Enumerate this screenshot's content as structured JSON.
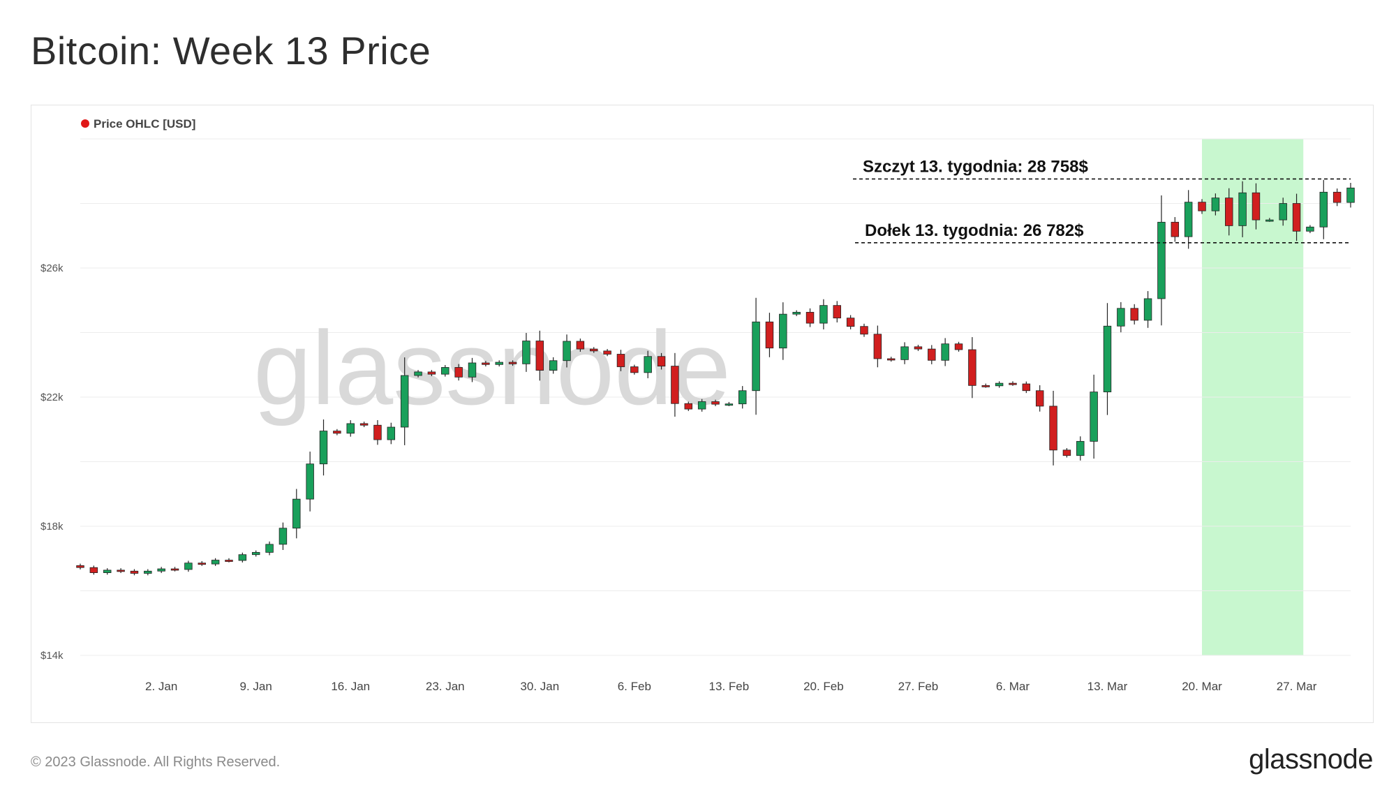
{
  "title": "Bitcoin: Week 13 Price",
  "footer": {
    "copyright": "© 2023 Glassnode. All Rights Reserved.",
    "logo": "glassnode"
  },
  "colors": {
    "up": "#19a05b",
    "down": "#d11f1f",
    "highlight": "#c8f7cf",
    "grid": "#ececec",
    "legend_dot": "#e01818"
  },
  "chart_data": {
    "type": "candlestick",
    "legend": [
      {
        "label": "Price OHLC [USD]",
        "color": "#e01818"
      }
    ],
    "watermark": "glassnode",
    "y_axis": {
      "ticks": [
        14000,
        18000,
        22000,
        26000
      ],
      "tick_labels": [
        "$14k",
        "$18k",
        "$22k",
        "$26k"
      ],
      "range": [
        14000,
        30000
      ]
    },
    "x_axis": {
      "start": "2022-12-27",
      "end": "2023-03-31",
      "ticks": [
        "2023-01-02",
        "2023-01-09",
        "2023-01-16",
        "2023-01-23",
        "2023-01-30",
        "2023-02-06",
        "2023-02-13",
        "2023-02-20",
        "2023-02-27",
        "2023-03-06",
        "2023-03-13",
        "2023-03-20",
        "2023-03-27"
      ],
      "tick_labels": [
        "2. Jan",
        "9. Jan",
        "16. Jan",
        "23. Jan",
        "30. Jan",
        "6. Feb",
        "13. Feb",
        "20. Feb",
        "27. Feb",
        "6. Mar",
        "13. Mar",
        "20. Mar",
        "27. Mar"
      ]
    },
    "highlight": {
      "from": "2023-03-20",
      "to": "2023-03-27"
    },
    "annotations": [
      {
        "label": "Szczyt 13. tygodnia: 28 758$",
        "value": 28758
      },
      {
        "label": "Dołek 13. tygodnia: 26 782$",
        "value": 26782
      }
    ],
    "close_series": [
      [
        "2022-12-27",
        16720
      ],
      [
        "2022-12-28",
        16560
      ],
      [
        "2022-12-29",
        16640
      ],
      [
        "2022-12-30",
        16610
      ],
      [
        "2022-12-31",
        16540
      ],
      [
        "2023-01-01",
        16610
      ],
      [
        "2023-01-02",
        16680
      ],
      [
        "2023-01-03",
        16660
      ],
      [
        "2023-01-04",
        16860
      ],
      [
        "2023-01-05",
        16830
      ],
      [
        "2023-01-06",
        16950
      ],
      [
        "2023-01-07",
        16940
      ],
      [
        "2023-01-08",
        17120
      ],
      [
        "2023-01-09",
        17190
      ],
      [
        "2023-01-10",
        17440
      ],
      [
        "2023-01-11",
        17940
      ],
      [
        "2023-01-12",
        18840
      ],
      [
        "2023-01-13",
        19930
      ],
      [
        "2023-01-14",
        20950
      ],
      [
        "2023-01-15",
        20880
      ],
      [
        "2023-01-16",
        21180
      ],
      [
        "2023-01-17",
        21130
      ],
      [
        "2023-01-18",
        20680
      ],
      [
        "2023-01-19",
        21070
      ],
      [
        "2023-01-20",
        22670
      ],
      [
        "2023-01-21",
        22780
      ],
      [
        "2023-01-22",
        22710
      ],
      [
        "2023-01-23",
        22920
      ],
      [
        "2023-01-24",
        22620
      ],
      [
        "2023-01-25",
        23060
      ],
      [
        "2023-01-26",
        23010
      ],
      [
        "2023-01-27",
        23080
      ],
      [
        "2023-01-28",
        23030
      ],
      [
        "2023-01-29",
        23740
      ],
      [
        "2023-01-30",
        22830
      ],
      [
        "2023-01-31",
        23130
      ],
      [
        "2023-02-01",
        23730
      ],
      [
        "2023-02-02",
        23490
      ],
      [
        "2023-02-03",
        23430
      ],
      [
        "2023-02-04",
        23330
      ],
      [
        "2023-02-05",
        22940
      ],
      [
        "2023-02-06",
        22760
      ],
      [
        "2023-02-07",
        23260
      ],
      [
        "2023-02-08",
        22960
      ],
      [
        "2023-02-09",
        21800
      ],
      [
        "2023-02-10",
        21630
      ],
      [
        "2023-02-11",
        21860
      ],
      [
        "2023-02-12",
        21780
      ],
      [
        "2023-02-13",
        21790
      ],
      [
        "2023-02-14",
        22200
      ],
      [
        "2023-02-15",
        24330
      ],
      [
        "2023-02-16",
        23520
      ],
      [
        "2023-02-17",
        24570
      ],
      [
        "2023-02-18",
        24630
      ],
      [
        "2023-02-19",
        24290
      ],
      [
        "2023-02-20",
        24840
      ],
      [
        "2023-02-21",
        24450
      ],
      [
        "2023-02-22",
        24190
      ],
      [
        "2023-02-23",
        23950
      ],
      [
        "2023-02-24",
        23190
      ],
      [
        "2023-02-25",
        23160
      ],
      [
        "2023-02-26",
        23560
      ],
      [
        "2023-02-27",
        23490
      ],
      [
        "2023-02-28",
        23140
      ],
      [
        "2023-03-01",
        23650
      ],
      [
        "2023-03-02",
        23470
      ],
      [
        "2023-03-03",
        22360
      ],
      [
        "2023-03-04",
        22350
      ],
      [
        "2023-03-05",
        22430
      ],
      [
        "2023-03-06",
        22410
      ],
      [
        "2023-03-07",
        22200
      ],
      [
        "2023-03-08",
        21720
      ],
      [
        "2023-03-09",
        20360
      ],
      [
        "2023-03-10",
        20190
      ],
      [
        "2023-03-11",
        20630
      ],
      [
        "2023-03-12",
        22160
      ],
      [
        "2023-03-13",
        24200
      ],
      [
        "2023-03-14",
        24750
      ],
      [
        "2023-03-15",
        24380
      ],
      [
        "2023-03-16",
        25050
      ],
      [
        "2023-03-17",
        27420
      ],
      [
        "2023-03-18",
        26970
      ],
      [
        "2023-03-19",
        28040
      ],
      [
        "2023-03-20",
        27770
      ],
      [
        "2023-03-21",
        28170
      ],
      [
        "2023-03-22",
        27310
      ],
      [
        "2023-03-23",
        28330
      ],
      [
        "2023-03-24",
        27490
      ],
      [
        "2023-03-25",
        27490
      ],
      [
        "2023-03-26",
        28000
      ],
      [
        "2023-03-27",
        27140
      ],
      [
        "2023-03-28",
        27270
      ],
      [
        "2023-03-29",
        28350
      ],
      [
        "2023-03-30",
        28030
      ],
      [
        "2023-03-31",
        28480
      ]
    ]
  }
}
